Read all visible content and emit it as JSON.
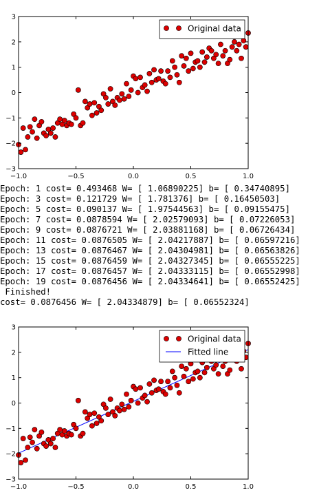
{
  "chart_data": [
    {
      "type": "scatter",
      "xlim": [
        -1.0,
        1.0
      ],
      "ylim": [
        -3,
        3
      ],
      "x_ticks": [
        "−1.0",
        "−0.5",
        "0.0",
        "0.5",
        "1.0"
      ],
      "y_ticks": [
        "−3",
        "−2",
        "−1",
        "0",
        "1",
        "2",
        "3"
      ],
      "grid": false,
      "legend_position": "top-right",
      "series": [
        {
          "name": "Original data",
          "color": "#dd0000",
          "marker": "circle",
          "x": [
            -1.0,
            -0.98,
            -0.96,
            -0.94,
            -0.92,
            -0.9,
            -0.88,
            -0.86,
            -0.84,
            -0.82,
            -0.8,
            -0.78,
            -0.76,
            -0.74,
            -0.72,
            -0.7,
            -0.68,
            -0.66,
            -0.64,
            -0.62,
            -0.6,
            -0.58,
            -0.56,
            -0.54,
            -0.52,
            -0.5,
            -0.48,
            -0.46,
            -0.44,
            -0.42,
            -0.4,
            -0.38,
            -0.36,
            -0.34,
            -0.32,
            -0.3,
            -0.28,
            -0.26,
            -0.24,
            -0.22,
            -0.2,
            -0.18,
            -0.16,
            -0.14,
            -0.12,
            -0.1,
            -0.08,
            -0.06,
            -0.04,
            -0.02,
            0.0,
            0.02,
            0.04,
            0.06,
            0.08,
            0.1,
            0.12,
            0.14,
            0.16,
            0.18,
            0.2,
            0.22,
            0.24,
            0.26,
            0.28,
            0.3,
            0.32,
            0.34,
            0.36,
            0.38,
            0.4,
            0.42,
            0.44,
            0.46,
            0.48,
            0.5,
            0.52,
            0.54,
            0.56,
            0.58,
            0.6,
            0.62,
            0.64,
            0.66,
            0.68,
            0.7,
            0.72,
            0.74,
            0.76,
            0.78,
            0.8,
            0.82,
            0.84,
            0.86,
            0.88,
            0.9,
            0.92,
            0.94,
            0.96,
            0.98,
            1.0
          ],
          "y": [
            -2.05,
            -2.35,
            -1.4,
            -2.25,
            -1.75,
            -1.35,
            -1.55,
            -1.05,
            -1.8,
            -1.3,
            -1.15,
            -1.6,
            -1.7,
            -1.45,
            -1.6,
            -1.4,
            -1.75,
            -1.2,
            -1.05,
            -1.25,
            -1.1,
            -1.3,
            -1.2,
            -1.25,
            -0.85,
            -1.0,
            0.1,
            -1.3,
            -1.2,
            -0.35,
            -0.6,
            -0.45,
            -0.9,
            -0.4,
            -0.8,
            -0.55,
            -0.7,
            -0.05,
            -0.2,
            -0.45,
            0.15,
            -0.35,
            -0.5,
            -0.2,
            -0.3,
            -0.05,
            -0.25,
            0.35,
            -0.15,
            0.1,
            0.65,
            0.55,
            0.0,
            0.6,
            0.2,
            0.3,
            0.05,
            0.75,
            0.4,
            0.9,
            0.5,
            0.55,
            0.85,
            0.45,
            0.35,
            0.85,
            0.6,
            1.25,
            1.0,
            0.7,
            0.4,
            1.45,
            1.05,
            1.35,
            0.85,
            1.55,
            0.95,
            1.2,
            1.25,
            1.0,
            1.6,
            1.2,
            1.4,
            1.75,
            1.65,
            1.35,
            1.5,
            1.15,
            1.9,
            1.45,
            1.65,
            1.15,
            1.3,
            1.8,
            2.0,
            1.65,
            1.9,
            1.35,
            2.05,
            1.8,
            2.35
          ]
        }
      ]
    },
    {
      "type": "scatter",
      "xlim": [
        -1.0,
        1.0
      ],
      "ylim": [
        -3,
        3
      ],
      "x_ticks": [
        "−1.0",
        "−0.5",
        "0.0",
        "0.5",
        "1.0"
      ],
      "y_ticks": [
        "−3",
        "−2",
        "−1",
        "0",
        "1",
        "2",
        "3"
      ],
      "grid": false,
      "legend_position": "top-right",
      "series": [
        {
          "name": "Original data",
          "color": "#dd0000",
          "marker": "circle",
          "x": [
            -1.0,
            -0.98,
            -0.96,
            -0.94,
            -0.92,
            -0.9,
            -0.88,
            -0.86,
            -0.84,
            -0.82,
            -0.8,
            -0.78,
            -0.76,
            -0.74,
            -0.72,
            -0.7,
            -0.68,
            -0.66,
            -0.64,
            -0.62,
            -0.6,
            -0.58,
            -0.56,
            -0.54,
            -0.52,
            -0.5,
            -0.48,
            -0.46,
            -0.44,
            -0.42,
            -0.4,
            -0.38,
            -0.36,
            -0.34,
            -0.32,
            -0.3,
            -0.28,
            -0.26,
            -0.24,
            -0.22,
            -0.2,
            -0.18,
            -0.16,
            -0.14,
            -0.12,
            -0.1,
            -0.08,
            -0.06,
            -0.04,
            -0.02,
            0.0,
            0.02,
            0.04,
            0.06,
            0.08,
            0.1,
            0.12,
            0.14,
            0.16,
            0.18,
            0.2,
            0.22,
            0.24,
            0.26,
            0.28,
            0.3,
            0.32,
            0.34,
            0.36,
            0.38,
            0.4,
            0.42,
            0.44,
            0.46,
            0.48,
            0.5,
            0.52,
            0.54,
            0.56,
            0.58,
            0.6,
            0.62,
            0.64,
            0.66,
            0.68,
            0.7,
            0.72,
            0.74,
            0.76,
            0.78,
            0.8,
            0.82,
            0.84,
            0.86,
            0.88,
            0.9,
            0.92,
            0.94,
            0.96,
            0.98,
            1.0
          ],
          "y": [
            -2.05,
            -2.35,
            -1.4,
            -2.25,
            -1.75,
            -1.35,
            -1.55,
            -1.05,
            -1.8,
            -1.3,
            -1.15,
            -1.6,
            -1.7,
            -1.45,
            -1.6,
            -1.4,
            -1.75,
            -1.2,
            -1.05,
            -1.25,
            -1.1,
            -1.3,
            -1.2,
            -1.25,
            -0.85,
            -1.0,
            0.1,
            -1.3,
            -1.2,
            -0.35,
            -0.6,
            -0.45,
            -0.9,
            -0.4,
            -0.8,
            -0.55,
            -0.7,
            -0.05,
            -0.2,
            -0.45,
            0.15,
            -0.35,
            -0.5,
            -0.2,
            -0.3,
            -0.05,
            -0.25,
            0.35,
            -0.15,
            0.1,
            0.65,
            0.55,
            0.0,
            0.6,
            0.2,
            0.3,
            0.05,
            0.75,
            0.4,
            0.9,
            0.5,
            0.55,
            0.85,
            0.45,
            0.35,
            0.85,
            0.6,
            1.25,
            1.0,
            0.7,
            0.4,
            1.45,
            1.05,
            1.35,
            0.85,
            1.55,
            0.95,
            1.2,
            1.25,
            1.0,
            1.6,
            1.2,
            1.4,
            1.75,
            1.65,
            1.35,
            1.5,
            1.15,
            1.9,
            1.45,
            1.65,
            1.15,
            1.3,
            1.8,
            2.0,
            1.65,
            1.9,
            1.35,
            2.05,
            1.8,
            2.35
          ]
        },
        {
          "name": "Fitted line",
          "color": "#0000ff",
          "marker": "line",
          "x": [
            -1.0,
            1.0
          ],
          "y": [
            -1.97782555,
            2.10887203
          ]
        }
      ]
    }
  ],
  "console": {
    "lines": [
      "Epoch: 1 cost= 0.493468 W= [ 1.06890225] b= [ 0.34740895]",
      "Epoch: 3 cost= 0.121729 W= [ 1.781376] b= [ 0.16450503]",
      "Epoch: 5 cost= 0.090137 W= [ 1.97544563] b= [ 0.09155475]",
      "Epoch: 7 cost= 0.0878594 W= [ 2.02579093] b= [ 0.07226053]",
      "Epoch: 9 cost= 0.0876721 W= [ 2.03881168] b= [ 0.06726434]",
      "Epoch: 11 cost= 0.0876505 W= [ 2.04217887] b= [ 0.06597216]",
      "Epoch: 13 cost= 0.0876467 W= [ 2.04304981] b= [ 0.06563826]",
      "Epoch: 15 cost= 0.0876459 W= [ 2.04327345] b= [ 0.06555225]",
      "Epoch: 17 cost= 0.0876457 W= [ 2.04333115] b= [ 0.06552998]",
      "Epoch: 19 cost= 0.0876456 W= [ 2.04334641] b= [ 0.06552425]",
      " Finished!",
      "cost= 0.0876456 W= [ 2.04334879] b= [ 0.06552324]"
    ]
  }
}
